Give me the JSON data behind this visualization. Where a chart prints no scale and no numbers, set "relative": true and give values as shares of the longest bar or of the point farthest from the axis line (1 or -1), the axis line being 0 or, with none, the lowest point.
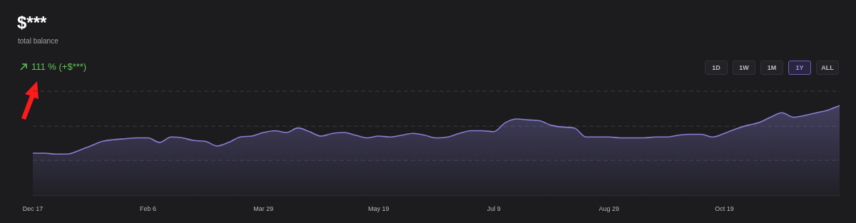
{
  "chart_data": {
    "type": "area",
    "title": "$***",
    "subtitle": "total balance",
    "annotations": [
      "111 % (+$***)",
      "1D",
      "1W",
      "1M",
      "1Y",
      "ALL"
    ],
    "relative": true,
    "legend": false,
    "ref_lines": [
      {
        "axis": "y",
        "value": 0.39,
        "color": "#3a3a40",
        "line_style": "dashed"
      },
      {
        "axis": "y",
        "value": 0.77,
        "color": "#3a3a40",
        "line_style": "dashed"
      },
      {
        "axis": "y",
        "value": 1.16,
        "color": "#3a3a40",
        "line_style": "dashed"
      }
    ],
    "marker": "none",
    "categories": [
      "Dec 17",
      null,
      null,
      null,
      null,
      null,
      null,
      null,
      null,
      null,
      "Feb 6",
      null,
      null,
      null,
      null,
      null,
      null,
      null,
      null,
      null,
      "Mar 29",
      null,
      null,
      null,
      null,
      null,
      null,
      null,
      null,
      null,
      "May 19",
      null,
      null,
      null,
      null,
      null,
      null,
      null,
      null,
      null,
      "Jul 9",
      null,
      null,
      null,
      null,
      null,
      null,
      null,
      null,
      null,
      "Aug 29",
      null,
      null,
      null,
      null,
      null,
      null,
      null,
      null,
      null,
      "Oct 19",
      null,
      null,
      null,
      null,
      null,
      null,
      null,
      null,
      null,
      null
    ],
    "series": [
      {
        "color": "#8a7fd4",
        "values": [
          0.47,
          0.47,
          0.46,
          0.46,
          0.5,
          0.55,
          0.6,
          0.62,
          0.63,
          0.64,
          0.64,
          0.59,
          0.65,
          0.64,
          0.61,
          0.6,
          0.55,
          0.59,
          0.65,
          0.66,
          0.7,
          0.72,
          0.7,
          0.75,
          0.71,
          0.66,
          0.69,
          0.7,
          0.67,
          0.64,
          0.66,
          0.65,
          0.67,
          0.69,
          0.67,
          0.64,
          0.65,
          0.69,
          0.72,
          0.72,
          0.71,
          0.81,
          0.85,
          0.84,
          0.83,
          0.78,
          0.76,
          0.75,
          0.65,
          0.65,
          0.65,
          0.64,
          0.64,
          0.64,
          0.65,
          0.65,
          0.67,
          0.68,
          0.68,
          0.65,
          0.69,
          0.74,
          0.78,
          0.81,
          0.87,
          0.92,
          0.87,
          0.89,
          0.92,
          0.95,
          1.0
        ]
      }
    ]
  }
}
